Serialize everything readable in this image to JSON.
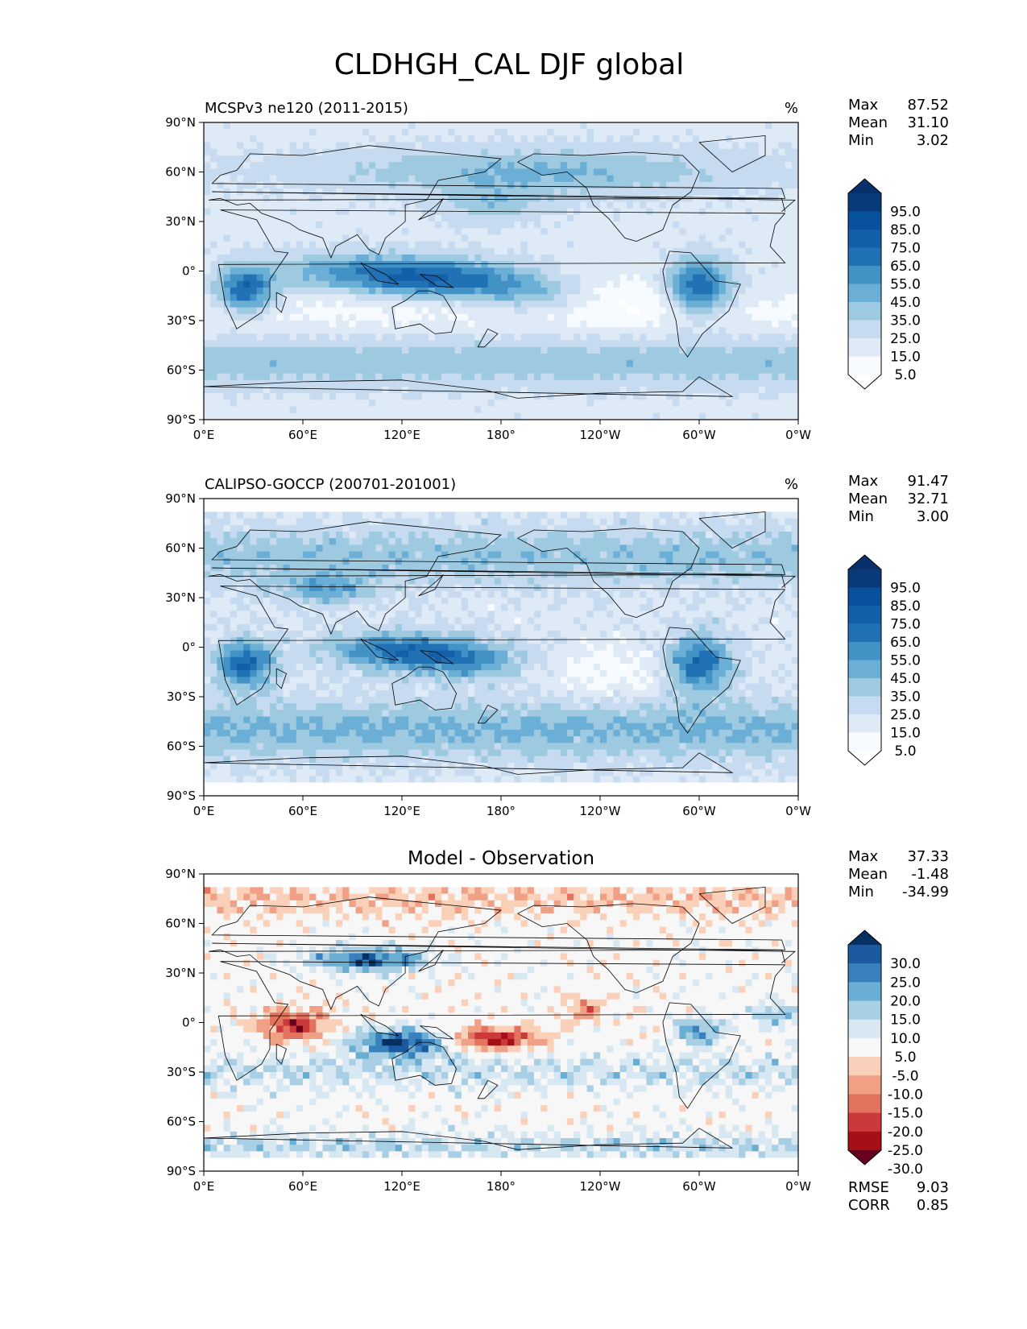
{
  "figure_title": "CLDHGH_CAL DJF global",
  "chart_data": [
    {
      "type": "heatmap",
      "panel_title": "MCSPv3 ne120 (2011-2015)",
      "units": "%",
      "xlabel": "",
      "ylabel": "",
      "x_ticks": [
        "0°E",
        "60°E",
        "120°E",
        "180°",
        "120°W",
        "60°W",
        "0°W"
      ],
      "y_ticks": [
        "90°N",
        "60°N",
        "30°N",
        "0°",
        "30°S",
        "60°S",
        "90°S"
      ],
      "xlim": [
        0,
        360
      ],
      "ylim": [
        -90,
        90
      ],
      "stats": {
        "Max": "87.52",
        "Mean": "31.10",
        "Min": "3.02"
      },
      "colorbar": {
        "labels": [
          "95.0",
          "85.0",
          "75.0",
          "65.0",
          "55.0",
          "45.0",
          "35.0",
          "25.0",
          "15.0",
          "5.0"
        ],
        "levels": [
          0,
          5,
          15,
          25,
          35,
          45,
          55,
          65,
          75,
          85,
          95,
          100
        ],
        "colors": [
          "#ffffff",
          "#f7fbff",
          "#deebf7",
          "#c6dbef",
          "#9ecae1",
          "#6baed6",
          "#4292c6",
          "#2171b5",
          "#1360a8",
          "#08519c",
          "#083a7a",
          "#08306b"
        ]
      },
      "coverage_lat": [
        -90,
        90
      ]
    },
    {
      "type": "heatmap",
      "panel_title": "CALIPSO-GOCCP (200701-201001)",
      "units": "%",
      "xlabel": "",
      "ylabel": "",
      "x_ticks": [
        "0°E",
        "60°E",
        "120°E",
        "180°",
        "120°W",
        "60°W",
        "0°W"
      ],
      "y_ticks": [
        "90°N",
        "60°N",
        "30°N",
        "0°",
        "30°S",
        "60°S",
        "90°S"
      ],
      "xlim": [
        0,
        360
      ],
      "ylim": [
        -90,
        90
      ],
      "stats": {
        "Max": "91.47",
        "Mean": "32.71",
        "Min": "3.00"
      },
      "colorbar": {
        "labels": [
          "95.0",
          "85.0",
          "75.0",
          "65.0",
          "55.0",
          "45.0",
          "35.0",
          "25.0",
          "15.0",
          "5.0"
        ],
        "levels": [
          0,
          5,
          15,
          25,
          35,
          45,
          55,
          65,
          75,
          85,
          95,
          100
        ],
        "colors": [
          "#ffffff",
          "#f7fbff",
          "#deebf7",
          "#c6dbef",
          "#9ecae1",
          "#6baed6",
          "#4292c6",
          "#2171b5",
          "#1360a8",
          "#08519c",
          "#083a7a",
          "#08306b"
        ]
      },
      "coverage_lat": [
        -82,
        82
      ]
    },
    {
      "type": "heatmap",
      "panel_title": "Model - Observation",
      "units": "",
      "xlabel": "",
      "ylabel": "",
      "x_ticks": [
        "0°E",
        "60°E",
        "120°E",
        "180°",
        "120°W",
        "60°W",
        "0°W"
      ],
      "y_ticks": [
        "90°N",
        "60°N",
        "30°N",
        "0°",
        "30°S",
        "60°S",
        "90°S"
      ],
      "xlim": [
        0,
        360
      ],
      "ylim": [
        -90,
        90
      ],
      "stats": {
        "Max": "37.33",
        "Mean": "-1.48",
        "Min": "-34.99"
      },
      "metrics": {
        "RMSE": "9.03",
        "CORR": "0.85"
      },
      "colorbar": {
        "labels": [
          "30.0",
          "25.0",
          "20.0",
          "15.0",
          "10.0",
          "5.0",
          "-5.0",
          "-10.0",
          "-15.0",
          "-20.0",
          "-25.0",
          "-30.0"
        ],
        "levels": [
          -40,
          -30,
          -25,
          -20,
          -15,
          -10,
          -5,
          5,
          10,
          15,
          20,
          25,
          30,
          40
        ],
        "colors": [
          "#67001f",
          "#a50f15",
          "#cb3a3a",
          "#e3735f",
          "#f0a084",
          "#fbd0b9",
          "#f7f7f7",
          "#d8e8f2",
          "#a9cfe5",
          "#6aaed3",
          "#3881bc",
          "#1c5aa0",
          "#053061"
        ]
      },
      "coverage_lat": [
        -82,
        82
      ]
    }
  ]
}
